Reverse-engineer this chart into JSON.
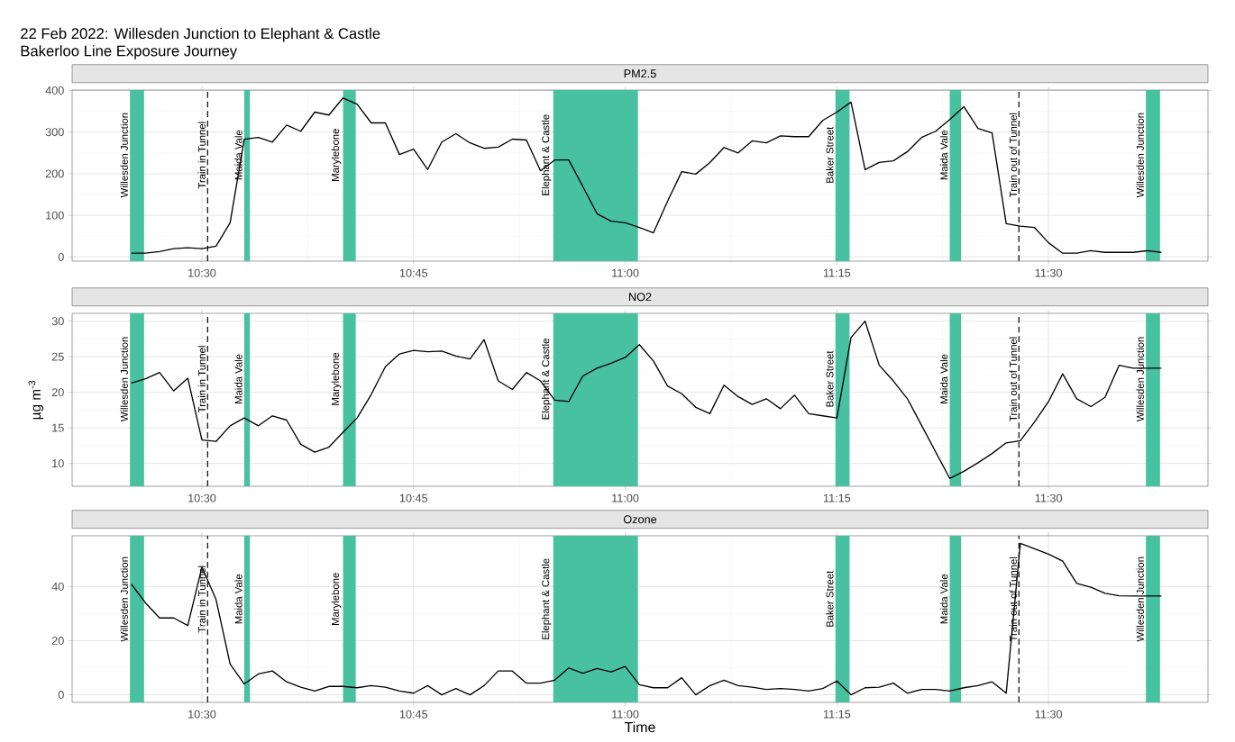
{
  "chart_data": [
    {
      "type": "line",
      "title": "22 Feb 2022: Willesden Junction to Elephant & Castle",
      "subtitle": "Bakerloo Line Exposure Journey",
      "x": [
        10.4167,
        10.4333,
        10.45,
        10.4667,
        10.4833,
        10.5,
        10.5167,
        10.5333,
        10.55,
        10.5667,
        10.5833,
        10.6,
        10.6167,
        10.6333,
        10.65,
        10.6667,
        10.6833,
        10.7,
        10.7167,
        10.7333,
        10.75,
        10.7667,
        10.7833,
        10.8,
        10.8167,
        10.8333,
        10.85,
        10.8667,
        10.8833,
        10.9,
        10.9167,
        10.9333,
        10.95,
        10.9667,
        10.9833,
        11,
        11.0167,
        11.0333,
        11.05,
        11.0667,
        11.0833,
        11.1,
        11.1167,
        11.1333,
        11.15,
        11.1667,
        11.1833,
        11.2,
        11.2167,
        11.2333,
        11.25,
        11.2667,
        11.2833,
        11.3,
        11.3167,
        11.3333,
        11.35,
        11.3667,
        11.3833,
        11.4,
        11.4167,
        11.4333,
        11.45,
        11.4667,
        11.4833,
        11.5,
        11.5167,
        11.5333,
        11.55,
        11.5667,
        11.5833,
        11.6,
        11.6167,
        11.6333
      ],
      "series": [
        {
          "name": "PM2.5",
          "color": "#000000",
          "values": [
            9,
            9,
            13,
            20,
            22,
            20,
            26,
            82,
            283,
            287,
            276,
            317,
            302,
            348,
            341,
            382,
            367,
            322,
            322,
            246,
            259,
            210,
            276,
            296,
            274,
            261,
            264,
            283,
            281,
            207,
            233,
            233,
            169,
            104,
            86,
            82,
            71,
            58,
            134,
            205,
            199,
            227,
            263,
            250,
            279,
            274,
            291,
            289,
            289,
            328,
            348,
            372,
            210,
            227,
            231,
            253,
            287,
            302,
            330,
            361,
            309,
            298,
            80,
            74,
            71,
            34,
            9,
            9,
            15,
            11,
            11,
            11,
            15,
            11
          ]
        }
      ],
      "xlim": [
        10.3467,
        11.6883
      ],
      "xticks": [
        {
          "value": 10.5,
          "label": "10:30"
        },
        {
          "value": 10.75,
          "label": "10:45"
        },
        {
          "value": 11,
          "label": "11:00"
        },
        {
          "value": 11.25,
          "label": "11:15"
        },
        {
          "value": 11.5,
          "label": "11:30"
        }
      ],
      "ylim": [
        -10,
        401
      ],
      "yticks": [
        0,
        100,
        200,
        300,
        400
      ],
      "grid": true,
      "bands": [
        {
          "axis": "x",
          "from": 10.415,
          "to": 10.4317,
          "label": "Willesden Junction",
          "color": "#47c1a0"
        },
        {
          "axis": "x",
          "from": 10.55,
          "to": 10.5567,
          "label": "Maida Vale",
          "color": "#47c1a0"
        },
        {
          "axis": "x",
          "from": 10.6667,
          "to": 10.6817,
          "label": "Marylebone",
          "color": "#47c1a0"
        },
        {
          "axis": "x",
          "from": 10.915,
          "to": 11.015,
          "label": "Elephant & Castle",
          "color": "#47c1a0"
        },
        {
          "axis": "x",
          "from": 11.2483,
          "to": 11.265,
          "label": "Baker Street",
          "color": "#47c1a0"
        },
        {
          "axis": "x",
          "from": 11.3833,
          "to": 11.3967,
          "label": "Maida Vale",
          "color": "#47c1a0"
        },
        {
          "axis": "x",
          "from": 11.615,
          "to": 11.6317,
          "label": "Willesden Junction",
          "color": "#47c1a0"
        }
      ],
      "ref_lines": [
        {
          "axis": "x",
          "value": 10.5067,
          "label": "Train in Tunnel",
          "color": "#000000",
          "line_style": "dashed"
        },
        {
          "axis": "x",
          "value": 11.465,
          "label": "Train out of Tunnel",
          "color": "#000000",
          "line_style": "dashed"
        }
      ]
    },
    {
      "type": "line",
      "ylabel": "µg m$^{-3}$",
      "x": [
        10.4167,
        10.4333,
        10.45,
        10.4667,
        10.4833,
        10.5,
        10.5167,
        10.5333,
        10.55,
        10.5667,
        10.5833,
        10.6,
        10.6167,
        10.6333,
        10.65,
        10.6667,
        10.6833,
        10.7,
        10.7167,
        10.7333,
        10.75,
        10.7667,
        10.7833,
        10.8,
        10.8167,
        10.8333,
        10.85,
        10.8667,
        10.8833,
        10.9,
        10.9167,
        10.9333,
        10.95,
        10.9667,
        10.9833,
        11,
        11.0167,
        11.0333,
        11.05,
        11.0667,
        11.0833,
        11.1,
        11.1167,
        11.1333,
        11.15,
        11.1667,
        11.1833,
        11.2,
        11.2167,
        11.2333,
        11.25,
        11.2667,
        11.2833,
        11.3,
        11.3167,
        11.3333,
        11.3833,
        11.4,
        11.4167,
        11.4333,
        11.45,
        11.4667,
        11.4833,
        11.5,
        11.5167,
        11.5333,
        11.55,
        11.5667,
        11.5833,
        11.6,
        11.6167,
        11.6333
      ],
      "series": [
        {
          "name": "NO2",
          "color": "#000000",
          "values": [
            21.3,
            21.9,
            22.8,
            20.2,
            22,
            13.3,
            13.1,
            15.3,
            16.4,
            15.3,
            16.7,
            16.1,
            12.7,
            11.6,
            12.3,
            14.4,
            16.4,
            19.7,
            23.6,
            25.4,
            25.9,
            25.7,
            25.8,
            25.1,
            24.7,
            27.4,
            21.6,
            20.4,
            22.8,
            21.6,
            18.9,
            18.7,
            22.3,
            23.4,
            24.1,
            24.9,
            26.7,
            24.4,
            20.9,
            19.8,
            17.9,
            17,
            21,
            19.4,
            18.3,
            19.1,
            17.7,
            19.6,
            17,
            16.7,
            16.4,
            27.7,
            30,
            23.8,
            21.6,
            19.1,
            7.9,
            8.9,
            10.1,
            11.4,
            12.9,
            13.2,
            15.8,
            18.7,
            22.6,
            19.1,
            18,
            19.3,
            23.8,
            23.4,
            23.4,
            23.4
          ]
        }
      ],
      "xlim": [
        10.3467,
        11.6883
      ],
      "xticks": [
        {
          "value": 10.5,
          "label": "10:30"
        },
        {
          "value": 10.75,
          "label": "10:45"
        },
        {
          "value": 11,
          "label": "11:00"
        },
        {
          "value": 11.25,
          "label": "11:15"
        },
        {
          "value": 11.5,
          "label": "11:30"
        }
      ],
      "ylim": [
        6.8,
        31.1
      ],
      "yticks": [
        10,
        15,
        20,
        25,
        30
      ],
      "grid": true,
      "bands": [
        {
          "axis": "x",
          "from": 10.415,
          "to": 10.4317,
          "label": "Willesden Junction",
          "color": "#47c1a0"
        },
        {
          "axis": "x",
          "from": 10.55,
          "to": 10.5567,
          "label": "Maida Vale",
          "color": "#47c1a0"
        },
        {
          "axis": "x",
          "from": 10.6667,
          "to": 10.6817,
          "label": "Marylebone",
          "color": "#47c1a0"
        },
        {
          "axis": "x",
          "from": 10.915,
          "to": 11.015,
          "label": "Elephant & Castle",
          "color": "#47c1a0"
        },
        {
          "axis": "x",
          "from": 11.2483,
          "to": 11.265,
          "label": "Baker Street",
          "color": "#47c1a0"
        },
        {
          "axis": "x",
          "from": 11.3833,
          "to": 11.3967,
          "label": "Maida Vale",
          "color": "#47c1a0"
        },
        {
          "axis": "x",
          "from": 11.615,
          "to": 11.6317,
          "label": "Willesden Junction",
          "color": "#47c1a0"
        }
      ],
      "ref_lines": [
        {
          "axis": "x",
          "value": 10.5067,
          "label": "Train in Tunnel",
          "color": "#000000",
          "line_style": "dashed"
        },
        {
          "axis": "x",
          "value": 11.465,
          "label": "Train out of Tunnel",
          "color": "#000000",
          "line_style": "dashed"
        }
      ]
    },
    {
      "type": "line",
      "xlabel": "Time",
      "x": [
        10.4167,
        10.4333,
        10.45,
        10.4667,
        10.4833,
        10.5,
        10.5167,
        10.5333,
        10.55,
        10.5667,
        10.5833,
        10.6,
        10.6167,
        10.6333,
        10.65,
        10.6667,
        10.6833,
        10.7,
        10.7167,
        10.7333,
        10.75,
        10.7667,
        10.7833,
        10.8,
        10.8167,
        10.8333,
        10.85,
        10.8667,
        10.8833,
        10.9,
        10.9167,
        10.9333,
        10.95,
        10.9667,
        10.9833,
        11,
        11.0167,
        11.0333,
        11.05,
        11.0667,
        11.0833,
        11.1,
        11.1167,
        11.1333,
        11.15,
        11.1667,
        11.1833,
        11.2,
        11.2167,
        11.2333,
        11.25,
        11.2667,
        11.2833,
        11.3,
        11.3167,
        11.3333,
        11.35,
        11.3667,
        11.3833,
        11.4,
        11.4167,
        11.4333,
        11.45,
        11.4667,
        11.5,
        11.5167,
        11.5333,
        11.55,
        11.5667,
        11.5833,
        11.6,
        11.6167,
        11.6333
      ],
      "series": [
        {
          "name": "Ozone",
          "color": "#000000",
          "values": [
            40.9,
            34,
            28.4,
            28.4,
            25.6,
            47.2,
            35.2,
            11.4,
            4,
            7.7,
            8.8,
            4.8,
            2.8,
            1.4,
            3.1,
            3.1,
            2.6,
            3.4,
            2.8,
            1.4,
            0.6,
            3.4,
            0,
            2.3,
            0,
            3.4,
            8.8,
            8.8,
            4.3,
            4.3,
            5.4,
            9.9,
            8,
            9.7,
            8.5,
            10.5,
            3.7,
            2.6,
            2.6,
            6.3,
            0,
            3.4,
            5.4,
            3.4,
            2.8,
            2,
            2.3,
            2,
            1.4,
            2.3,
            5.1,
            0,
            2.6,
            2.8,
            4.3,
            0.6,
            2,
            2,
            1.4,
            2.6,
            3.4,
            4.8,
            0.6,
            56,
            52,
            49.4,
            41.2,
            39.8,
            37.5,
            36.6,
            36.5,
            36.5,
            36.5
          ]
        }
      ],
      "xlim": [
        10.3467,
        11.6883
      ],
      "xticks": [
        {
          "value": 10.5,
          "label": "10:30"
        },
        {
          "value": 10.75,
          "label": "10:45"
        },
        {
          "value": 11,
          "label": "11:00"
        },
        {
          "value": 11.25,
          "label": "11:15"
        },
        {
          "value": 11.5,
          "label": "11:30"
        }
      ],
      "ylim": [
        -2.8,
        58.8
      ],
      "yticks": [
        0,
        20,
        40
      ],
      "grid": true,
      "bands": [
        {
          "axis": "x",
          "from": 10.415,
          "to": 10.4317,
          "label": "Willesden Junction",
          "color": "#47c1a0"
        },
        {
          "axis": "x",
          "from": 10.55,
          "to": 10.5567,
          "label": "Maida Vale",
          "color": "#47c1a0"
        },
        {
          "axis": "x",
          "from": 10.6667,
          "to": 10.6817,
          "label": "Marylebone",
          "color": "#47c1a0"
        },
        {
          "axis": "x",
          "from": 10.915,
          "to": 11.015,
          "label": "Elephant & Castle",
          "color": "#47c1a0"
        },
        {
          "axis": "x",
          "from": 11.2483,
          "to": 11.265,
          "label": "Baker Street",
          "color": "#47c1a0"
        },
        {
          "axis": "x",
          "from": 11.3833,
          "to": 11.3967,
          "label": "Maida Vale",
          "color": "#47c1a0"
        },
        {
          "axis": "x",
          "from": 11.615,
          "to": 11.6317,
          "label": "Willesden Junction",
          "color": "#47c1a0"
        }
      ],
      "ref_lines": [
        {
          "axis": "x",
          "value": 10.5067,
          "label": "Train in Tunnel",
          "color": "#000000",
          "line_style": "dashed"
        },
        {
          "axis": "x",
          "value": 11.465,
          "label": "Train out of Tunnel",
          "color": "#000000",
          "line_style": "dashed"
        }
      ]
    }
  ]
}
